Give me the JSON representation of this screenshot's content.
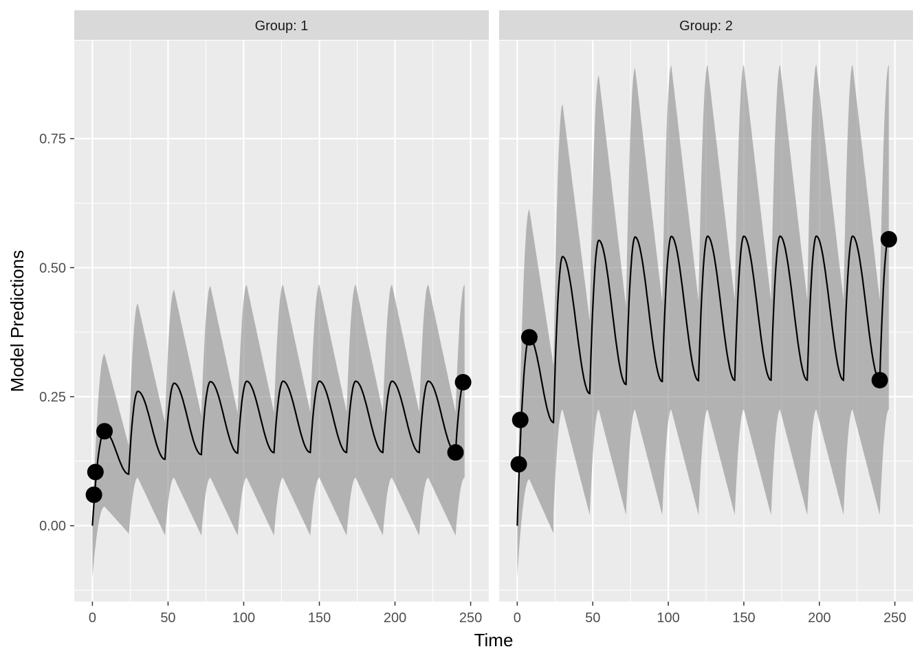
{
  "chart_data": {
    "type": "line",
    "xlabel": "Time",
    "ylabel": "Model Predictions",
    "xlim": [
      -12,
      262
    ],
    "ylim": [
      -0.147,
      0.94
    ],
    "x_ticks": [
      0,
      50,
      100,
      150,
      200,
      250
    ],
    "x_tick_labels": [
      "0",
      "50",
      "100",
      "150",
      "200",
      "250"
    ],
    "y_ticks": [
      0.0,
      0.25,
      0.5,
      0.75
    ],
    "y_tick_labels": [
      "0.00",
      "0.25",
      "0.50",
      "0.75"
    ],
    "grid": true,
    "panels": [
      {
        "strip": "Group: 1",
        "dose_interval": 24,
        "first_dose_peak_time": 8,
        "peak_time_after_dose": 6,
        "median_first_peak": 0.183,
        "median_first_trough": 0.1,
        "median_steady_peak": 0.28,
        "median_steady_trough": 0.142,
        "band_first_upper": 0.333,
        "band_steady_upper": 0.467,
        "band_steady_lower": 0.093,
        "band_min": -0.1,
        "observed_points": {
          "x": [
            1,
            2,
            8,
            240,
            245
          ],
          "y": [
            0.06,
            0.104,
            0.183,
            0.142,
            0.278
          ]
        }
      },
      {
        "strip": "Group: 2",
        "dose_interval": 24,
        "first_dose_peak_time": 8,
        "peak_time_after_dose": 6,
        "median_first_peak": 0.365,
        "median_first_trough": 0.2,
        "median_steady_peak": 0.561,
        "median_steady_trough": 0.282,
        "band_first_upper": 0.613,
        "band_steady_upper": 0.893,
        "band_steady_lower": 0.225,
        "band_min": -0.1,
        "observed_points": {
          "x": [
            1,
            2,
            8,
            240,
            246
          ],
          "y": [
            0.119,
            0.205,
            0.365,
            0.282,
            0.555
          ]
        }
      }
    ]
  }
}
